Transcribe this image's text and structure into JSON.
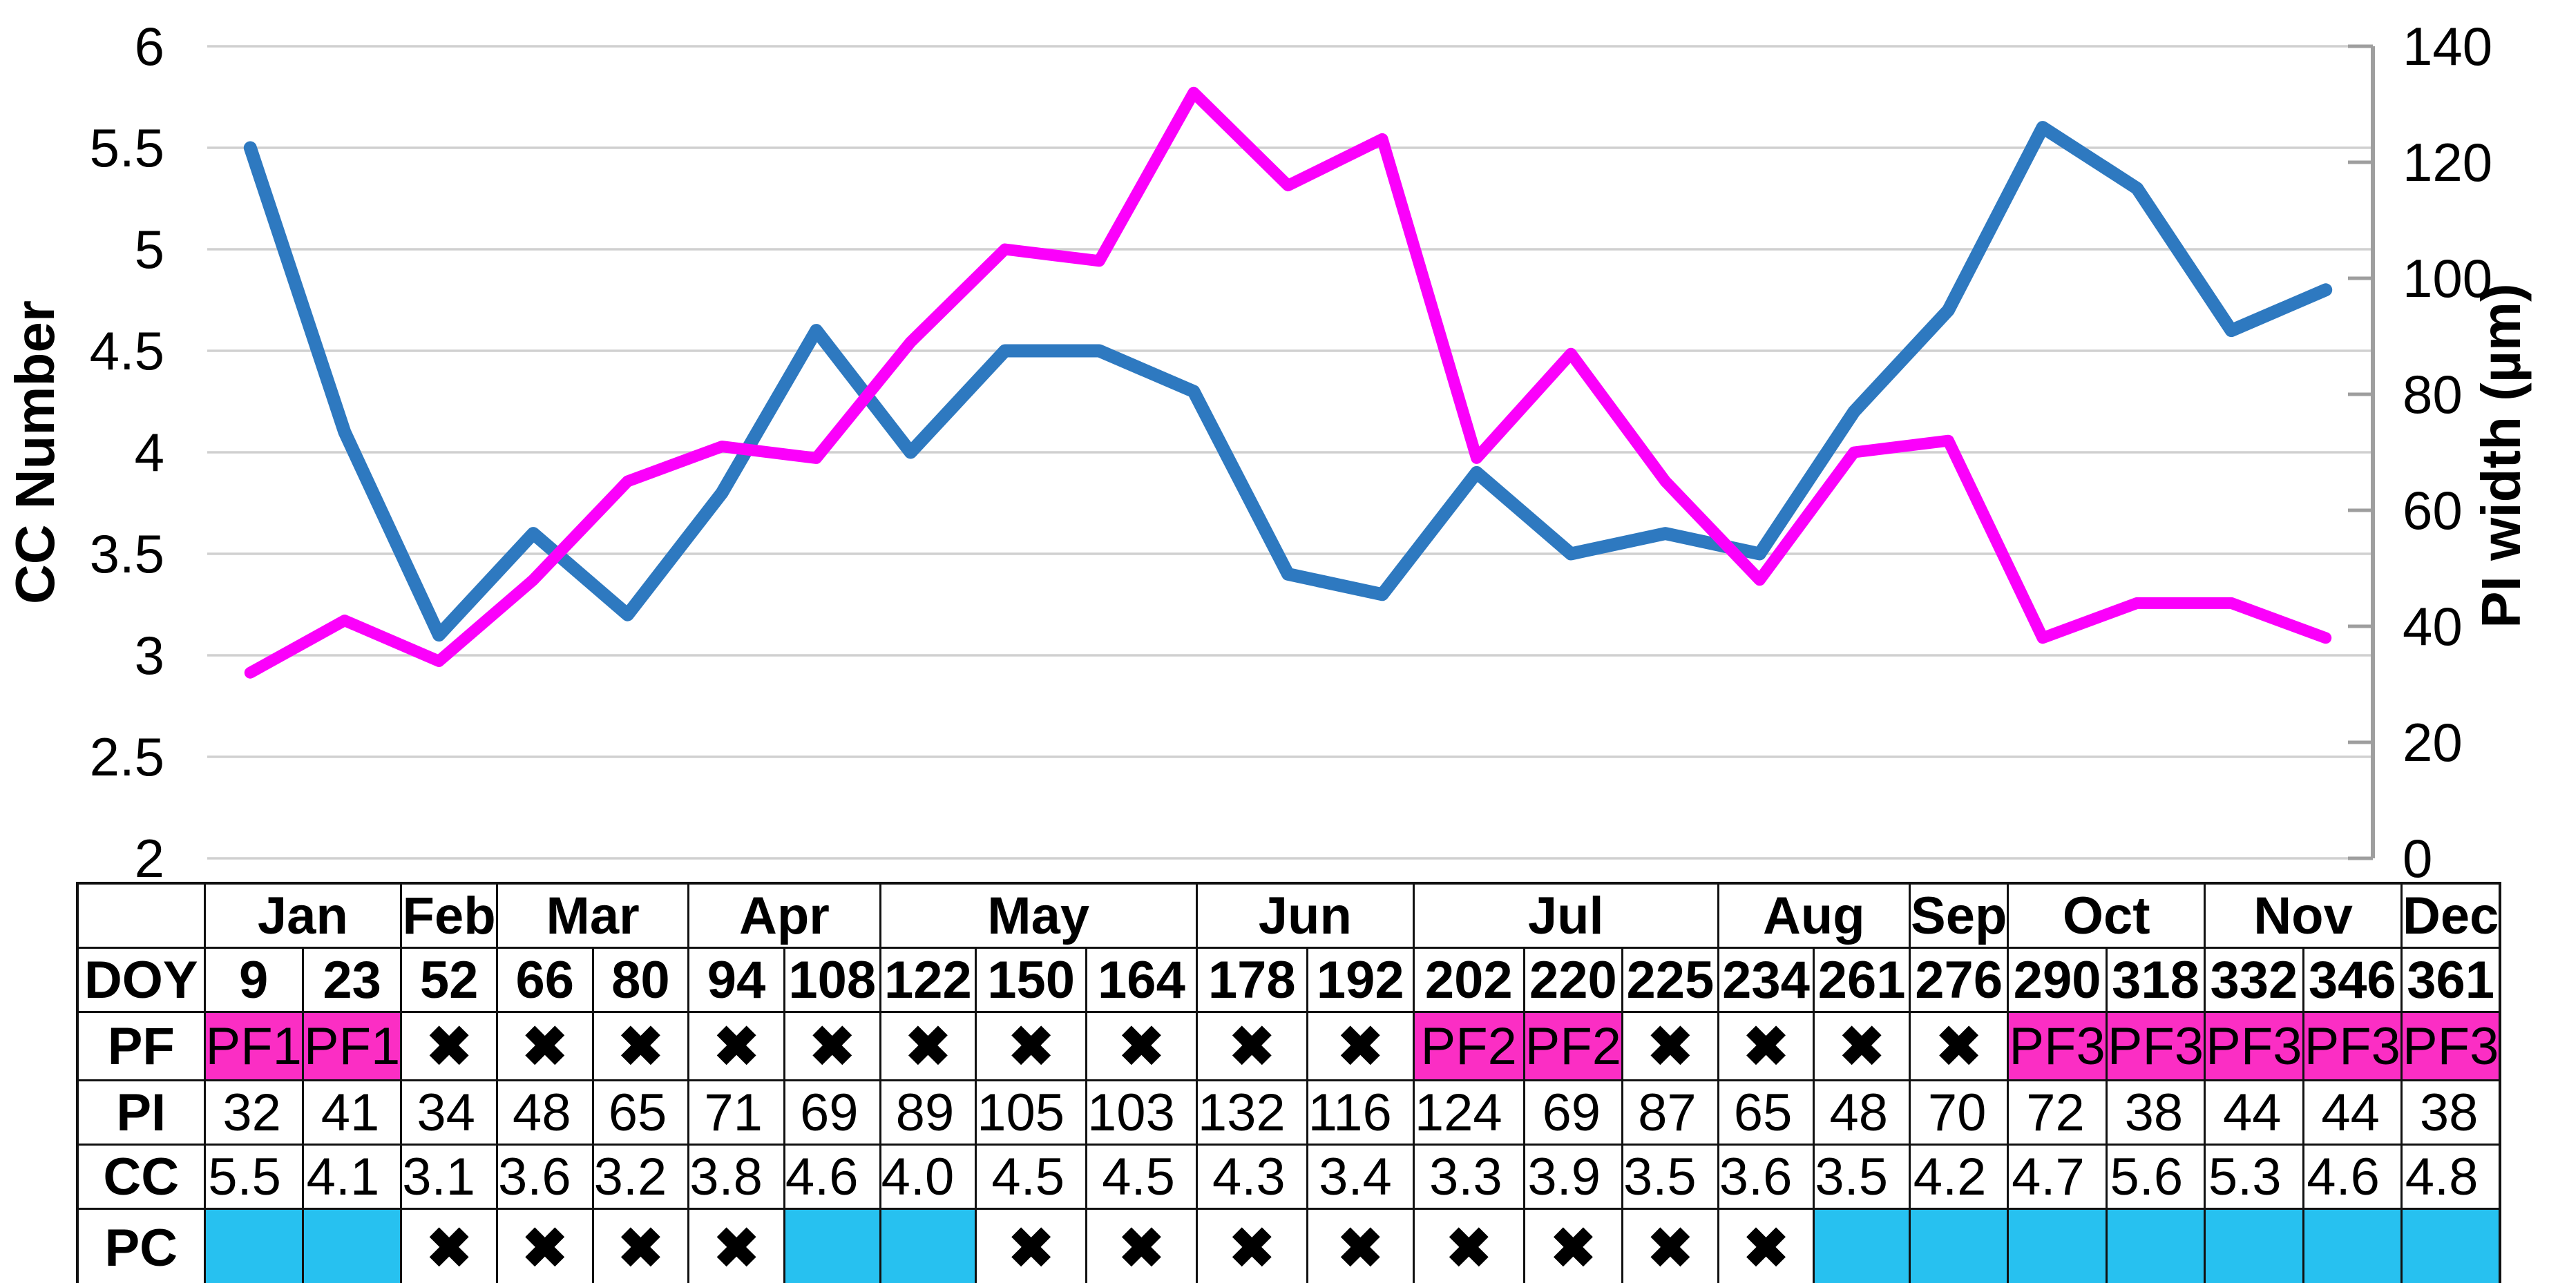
{
  "chart_data": {
    "type": "line",
    "title": "",
    "x_categories_doy": [
      9,
      23,
      52,
      66,
      80,
      94,
      108,
      122,
      150,
      164,
      178,
      192,
      202,
      220,
      225,
      234,
      261,
      276,
      290,
      318,
      332,
      346,
      361
    ],
    "left_axis": {
      "title": "CC Number",
      "min": 2,
      "max": 6,
      "step": 0.5,
      "tick_labels": [
        "6",
        "5.5",
        "5",
        "4.5",
        "4",
        "3.5",
        "3",
        "2.5",
        "2"
      ]
    },
    "right_axis": {
      "title": "PI width (µm)",
      "min": 0,
      "max": 140,
      "step": 20,
      "tick_labels": [
        "140",
        "120",
        "100",
        "80",
        "60",
        "40",
        "20",
        "0"
      ]
    },
    "grid": "horizontal-on",
    "legend": "none",
    "series": [
      {
        "name": "CC Number",
        "axis": "left",
        "color": "#2E79C0",
        "values": [
          5.5,
          4.1,
          3.1,
          3.6,
          3.2,
          3.8,
          4.6,
          4.0,
          4.5,
          4.5,
          4.3,
          3.4,
          3.3,
          3.9,
          3.5,
          3.6,
          3.5,
          4.2,
          4.7,
          5.6,
          5.3,
          4.6,
          4.8
        ]
      },
      {
        "name": "PI width (µm)",
        "axis": "right",
        "color": "#FB00FB",
        "values": [
          32,
          41,
          34,
          48,
          65,
          71,
          69,
          89,
          105,
          103,
          132,
          116,
          124,
          69,
          87,
          65,
          48,
          70,
          72,
          38,
          44,
          44,
          38
        ]
      }
    ]
  },
  "table": {
    "months": [
      {
        "label": "Jan",
        "span": 2
      },
      {
        "label": "Feb",
        "span": 1
      },
      {
        "label": "Mar",
        "span": 2
      },
      {
        "label": "Apr",
        "span": 2
      },
      {
        "label": "May",
        "span": 3
      },
      {
        "label": "Jun",
        "span": 2
      },
      {
        "label": "Jul",
        "span": 3
      },
      {
        "label": "Aug",
        "span": 2
      },
      {
        "label": "Sep",
        "span": 1
      },
      {
        "label": "Oct",
        "span": 2
      },
      {
        "label": "Nov",
        "span": 2
      },
      {
        "label": "Dec",
        "span": 1
      }
    ],
    "row_labels": {
      "doy": "DOY",
      "pf": "PF",
      "pi": "PI",
      "cc": "CC",
      "pc": "PC"
    },
    "x_glyph": "✖",
    "doy": [
      "9",
      "23",
      "52",
      "66",
      "80",
      "94",
      "108",
      "122",
      "150",
      "164",
      "178",
      "192",
      "202",
      "220",
      "225",
      "234",
      "261",
      "276",
      "290",
      "318",
      "332",
      "346",
      "361"
    ],
    "pf": [
      "PF1",
      "PF1",
      "X",
      "X",
      "X",
      "X",
      "X",
      "X",
      "X",
      "X",
      "X",
      "X",
      "PF2",
      "PF2",
      "X",
      "X",
      "X",
      "X",
      "PF3",
      "PF3",
      "PF3",
      "PF3",
      "PF3"
    ],
    "pi": [
      "32",
      "41",
      "34",
      "48",
      "65",
      "71",
      "69",
      "89",
      "105",
      "103",
      "132",
      "116",
      "124",
      "69",
      "87",
      "65",
      "48",
      "70",
      "72",
      "38",
      "44",
      "44",
      "38"
    ],
    "cc": [
      "5.5",
      "4.1",
      "3.1",
      "3.6",
      "3.2",
      "3.8",
      "4.6",
      "4.0",
      "4.5",
      "4.5",
      "4.3",
      "3.4",
      "3.3",
      "3.9",
      "3.5",
      "3.6",
      "3.5",
      "4.2",
      "4.7",
      "5.6",
      "5.3",
      "4.6",
      "4.8"
    ],
    "pc": [
      "fill",
      "fill",
      "X",
      "X",
      "X",
      "X",
      "fill",
      "fill",
      "X",
      "X",
      "X",
      "X",
      "X",
      "X",
      "X",
      "X",
      "fill",
      "fill",
      "fill",
      "fill",
      "fill",
      "fill",
      "fill"
    ]
  },
  "colors": {
    "cc_line": "#2E79C0",
    "pi_line": "#FB00FB",
    "pf_cell_bg": "#FB2EC4",
    "pc_cell_bg": "#27C1F0",
    "gridline": "#D0D0D0",
    "axis_line": "#9E9E9E",
    "table_border": "#111111",
    "text": "#000000"
  }
}
